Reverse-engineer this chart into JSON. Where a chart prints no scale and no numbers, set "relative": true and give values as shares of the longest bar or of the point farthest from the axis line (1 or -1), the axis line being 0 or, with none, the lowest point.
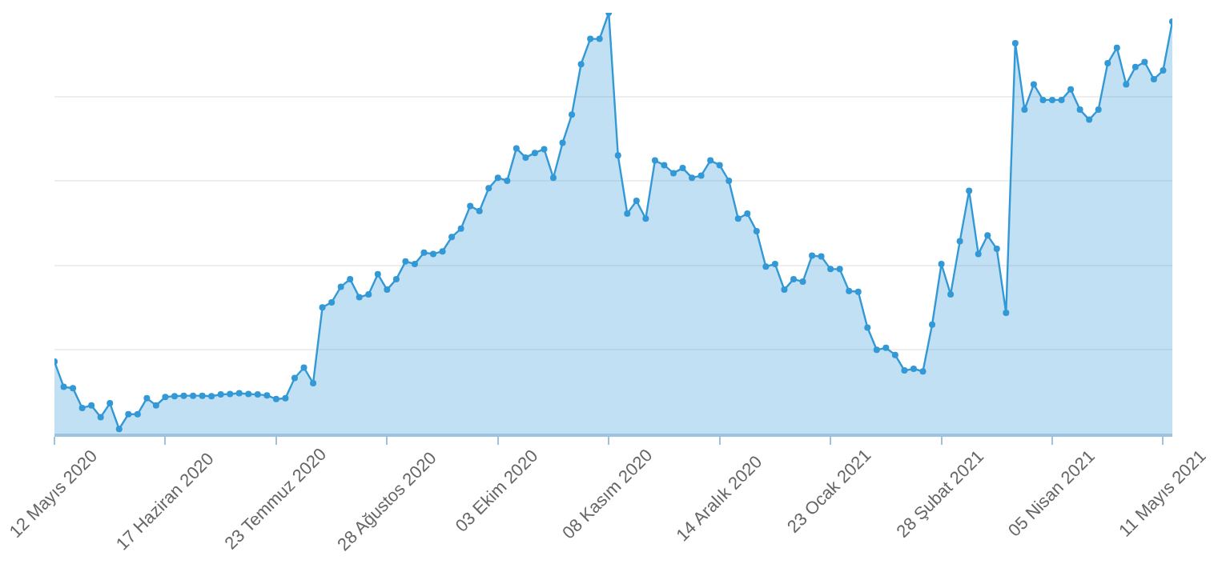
{
  "chart_data": {
    "type": "area",
    "relative": true,
    "grid": true,
    "marker": "circle",
    "line_style": "solid",
    "categories": [
      "12 Mayıs 2020",
      null,
      null,
      null,
      null,
      null,
      null,
      null,
      null,
      null,
      null,
      null,
      "17 Haziran 2020",
      null,
      null,
      null,
      null,
      null,
      null,
      null,
      null,
      null,
      null,
      null,
      "23 Temmuz 2020",
      null,
      null,
      null,
      null,
      null,
      null,
      null,
      null,
      null,
      null,
      null,
      "28 Ağustos 2020",
      null,
      null,
      null,
      null,
      null,
      null,
      null,
      null,
      null,
      null,
      null,
      "03 Ekim 2020",
      null,
      null,
      null,
      null,
      null,
      null,
      null,
      null,
      null,
      null,
      null,
      "08 Kasım 2020",
      null,
      null,
      null,
      null,
      null,
      null,
      null,
      null,
      null,
      null,
      null,
      "14 Aralık 2020",
      null,
      null,
      null,
      null,
      null,
      null,
      null,
      null,
      null,
      null,
      null,
      "23 Ocak 2021",
      null,
      null,
      null,
      null,
      null,
      null,
      null,
      null,
      null,
      null,
      null,
      "28 Şubat 2021",
      null,
      null,
      null,
      null,
      null,
      null,
      null,
      null,
      null,
      null,
      null,
      "05 Nisan 2021",
      null,
      null,
      null,
      null,
      null,
      null,
      null,
      null,
      null,
      null,
      null,
      "11 Mayıs 2021",
      null
    ],
    "series": [
      {
        "color": "#3399d6",
        "values": [
          0.171,
          0.111,
          0.108,
          0.061,
          0.067,
          0.039,
          0.072,
          0.011,
          0.046,
          0.046,
          0.084,
          0.067,
          0.087,
          0.089,
          0.09,
          0.09,
          0.09,
          0.089,
          0.093,
          0.094,
          0.096,
          0.094,
          0.093,
          0.091,
          0.082,
          0.084,
          0.132,
          0.157,
          0.12,
          0.3,
          0.312,
          0.349,
          0.367,
          0.324,
          0.331,
          0.379,
          0.342,
          0.367,
          0.409,
          0.403,
          0.43,
          0.427,
          0.433,
          0.467,
          0.487,
          0.541,
          0.529,
          0.583,
          0.608,
          0.601,
          0.678,
          0.656,
          0.667,
          0.676,
          0.608,
          0.691,
          0.758,
          0.878,
          0.938,
          0.938,
          1,
          0.661,
          0.523,
          0.553,
          0.511,
          0.649,
          0.638,
          0.619,
          0.631,
          0.608,
          0.613,
          0.649,
          0.638,
          0.601,
          0.511,
          0.523,
          0.481,
          0.397,
          0.403,
          0.342,
          0.367,
          0.361,
          0.423,
          0.421,
          0.391,
          0.391,
          0.339,
          0.337,
          0.252,
          0.199,
          0.204,
          0.187,
          0.15,
          0.154,
          0.148,
          0.259,
          0.403,
          0.331,
          0.457,
          0.577,
          0.427,
          0.471,
          0.439,
          0.287,
          0.928,
          0.77,
          0.83,
          0.793,
          0.793,
          0.793,
          0.818,
          0.77,
          0.746,
          0.77,
          0.88,
          0.917,
          0.83,
          0.871,
          0.883,
          0.842,
          0.863,
          0.979
        ]
      }
    ]
  }
}
